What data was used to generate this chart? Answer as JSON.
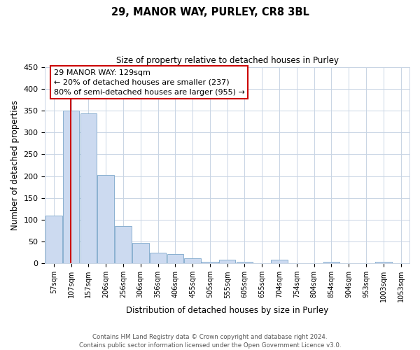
{
  "title": "29, MANOR WAY, PURLEY, CR8 3BL",
  "subtitle": "Size of property relative to detached houses in Purley",
  "xlabel": "Distribution of detached houses by size in Purley",
  "ylabel": "Number of detached properties",
  "bar_labels": [
    "57sqm",
    "107sqm",
    "157sqm",
    "206sqm",
    "256sqm",
    "306sqm",
    "356sqm",
    "406sqm",
    "455sqm",
    "505sqm",
    "555sqm",
    "605sqm",
    "655sqm",
    "704sqm",
    "754sqm",
    "804sqm",
    "854sqm",
    "904sqm",
    "953sqm",
    "1003sqm",
    "1053sqm"
  ],
  "bar_values": [
    110,
    350,
    343,
    203,
    85,
    47,
    25,
    22,
    12,
    3,
    8,
    3,
    0,
    8,
    0,
    0,
    3,
    0,
    0,
    3,
    0
  ],
  "bar_color": "#ccdaf0",
  "bar_edge_color": "#8ab0d0",
  "grid_color": "#c8d4e4",
  "annotation_text": "29 MANOR WAY: 129sqm\n← 20% of detached houses are smaller (237)\n80% of semi-detached houses are larger (955) →",
  "annotation_box_color": "#ffffff",
  "annotation_box_edge_color": "#cc0000",
  "property_line_color": "#cc0000",
  "footer_line1": "Contains HM Land Registry data © Crown copyright and database right 2024.",
  "footer_line2": "Contains public sector information licensed under the Open Government Licence v3.0.",
  "yticks": [
    0,
    50,
    100,
    150,
    200,
    250,
    300,
    350,
    400,
    450
  ],
  "ylim": [
    0,
    450
  ],
  "figsize": [
    6.0,
    5.0
  ],
  "dpi": 100
}
